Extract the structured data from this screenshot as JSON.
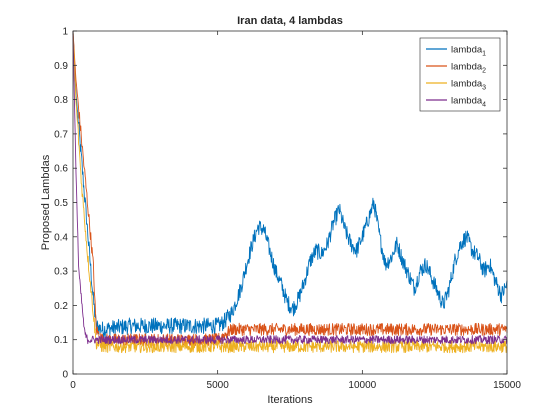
{
  "chart_data": {
    "type": "line",
    "title": "Iran data, 4 lambdas",
    "xlabel": "Iterations",
    "ylabel": "Proposed Lambdas",
    "xlim": [
      0,
      15000
    ],
    "ylim": [
      0,
      1
    ],
    "xticks": [
      0,
      5000,
      10000,
      15000
    ],
    "yticks": [
      0,
      0.1,
      0.2,
      0.3,
      0.4,
      0.5,
      0.6,
      0.7,
      0.8,
      0.9,
      1
    ],
    "grid": false,
    "legend_position": "top-right",
    "series": [
      {
        "name": "lambda",
        "subscript": "1",
        "color": "#0072BD",
        "noise": 0.012,
        "x": [
          0,
          100,
          300,
          500,
          700,
          800,
          1000,
          2000,
          3000,
          4000,
          5000,
          5200,
          5500,
          5800,
          6000,
          6200,
          6400,
          6600,
          6800,
          7000,
          7200,
          7400,
          7600,
          7800,
          8000,
          8200,
          8400,
          8600,
          8800,
          9000,
          9200,
          9400,
          9600,
          9800,
          10000,
          10200,
          10400,
          10600,
          10800,
          11000,
          11200,
          11400,
          11600,
          11800,
          12000,
          12200,
          12400,
          12600,
          12800,
          13000,
          13200,
          13400,
          13600,
          13800,
          14000,
          14200,
          14400,
          14600,
          14800,
          15000
        ],
        "values": [
          1.0,
          0.82,
          0.62,
          0.42,
          0.22,
          0.14,
          0.13,
          0.14,
          0.14,
          0.14,
          0.14,
          0.15,
          0.18,
          0.25,
          0.32,
          0.38,
          0.43,
          0.42,
          0.36,
          0.3,
          0.26,
          0.21,
          0.19,
          0.22,
          0.27,
          0.33,
          0.36,
          0.35,
          0.38,
          0.44,
          0.48,
          0.42,
          0.38,
          0.36,
          0.4,
          0.45,
          0.5,
          0.4,
          0.32,
          0.34,
          0.38,
          0.33,
          0.29,
          0.25,
          0.3,
          0.32,
          0.28,
          0.24,
          0.2,
          0.25,
          0.33,
          0.38,
          0.4,
          0.36,
          0.34,
          0.3,
          0.32,
          0.27,
          0.23,
          0.26
        ]
      },
      {
        "name": "lambda",
        "subscript": "2",
        "color": "#D95319",
        "noise": 0.009,
        "x": [
          0,
          100,
          300,
          500,
          700,
          800,
          1000,
          2000,
          3000,
          4000,
          5000,
          5500,
          6000,
          8000,
          10000,
          12000,
          14000,
          15000
        ],
        "values": [
          1.0,
          0.86,
          0.68,
          0.5,
          0.32,
          0.13,
          0.1,
          0.1,
          0.1,
          0.1,
          0.1,
          0.13,
          0.13,
          0.13,
          0.13,
          0.13,
          0.13,
          0.13
        ]
      },
      {
        "name": "lambda",
        "subscript": "3",
        "color": "#EDB120",
        "noise": 0.009,
        "x": [
          0,
          100,
          300,
          500,
          700,
          800,
          1000,
          2000,
          3000,
          4000,
          5000,
          6000,
          8000,
          10000,
          12000,
          14000,
          15000
        ],
        "values": [
          1.0,
          0.8,
          0.55,
          0.35,
          0.18,
          0.09,
          0.08,
          0.08,
          0.08,
          0.08,
          0.08,
          0.08,
          0.08,
          0.08,
          0.08,
          0.08,
          0.08
        ]
      },
      {
        "name": "lambda",
        "subscript": "4",
        "color": "#7E2F8E",
        "noise": 0.006,
        "x": [
          0,
          100,
          200,
          400,
          500,
          600,
          1000,
          2000,
          3000,
          4000,
          5000,
          6000,
          8000,
          10000,
          12000,
          14000,
          15000
        ],
        "values": [
          1.0,
          0.6,
          0.3,
          0.12,
          0.1,
          0.1,
          0.1,
          0.1,
          0.1,
          0.1,
          0.1,
          0.1,
          0.1,
          0.1,
          0.1,
          0.1,
          0.1
        ]
      }
    ]
  }
}
